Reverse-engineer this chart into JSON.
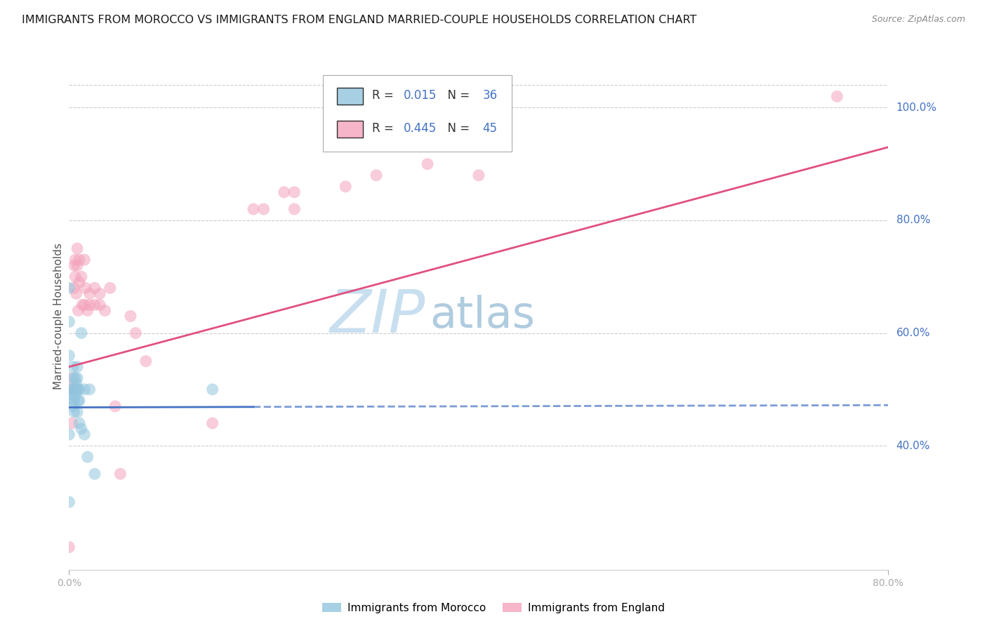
{
  "title": "IMMIGRANTS FROM MOROCCO VS IMMIGRANTS FROM ENGLAND MARRIED-COUPLE HOUSEHOLDS CORRELATION CHART",
  "source": "Source: ZipAtlas.com",
  "ylabel": "Married-couple Households",
  "xlim": [
    0.0,
    0.8
  ],
  "ylim": [
    0.18,
    1.08
  ],
  "ytick_values": [
    0.4,
    0.6,
    0.8,
    1.0
  ],
  "ytick_labels": [
    "40.0%",
    "60.0%",
    "80.0%",
    "100.0%"
  ],
  "xtick_values": [
    0.0,
    0.8
  ],
  "xtick_labels": [
    "0.0%",
    "80.0%"
  ],
  "legend_box": [
    {
      "label_prefix": "R = ",
      "R_val": "0.015",
      "mid": "   N = ",
      "N_val": "36",
      "color": "#92c5de"
    },
    {
      "label_prefix": "R = ",
      "R_val": "0.445",
      "mid": "   N = ",
      "N_val": "45",
      "color": "#f4a3bc"
    }
  ],
  "legend_bottom": [
    "Immigrants from Morocco",
    "Immigrants from England"
  ],
  "morocco_color": "#92c5de",
  "england_color": "#f4a3bc",
  "morocco_line_color": "#4472c4",
  "england_line_color": "#e05080",
  "dot_alpha": 0.55,
  "dot_size": 150,
  "bg_color": "#ffffff",
  "grid_color": "#cccccc",
  "tick_color": "#4472c4",
  "title_color": "#1a1a1a",
  "title_fontsize": 11.5,
  "source_fontsize": 9,
  "watermark_zip": "ZIP",
  "watermark_atlas": "atlas",
  "watermark_color_zip": "#c8dff0",
  "watermark_color_atlas": "#b0ccdf",
  "watermark_fontsize": 62,
  "morocco_x": [
    0.0,
    0.0,
    0.0,
    0.0,
    0.0,
    0.002,
    0.003,
    0.003,
    0.004,
    0.004,
    0.004,
    0.005,
    0.005,
    0.005,
    0.005,
    0.006,
    0.006,
    0.006,
    0.007,
    0.007,
    0.008,
    0.008,
    0.008,
    0.009,
    0.009,
    0.01,
    0.01,
    0.01,
    0.012,
    0.012,
    0.015,
    0.015,
    0.018,
    0.02,
    0.025,
    0.14
  ],
  "morocco_y": [
    0.68,
    0.62,
    0.56,
    0.42,
    0.3,
    0.5,
    0.49,
    0.48,
    0.54,
    0.52,
    0.47,
    0.5,
    0.5,
    0.48,
    0.46,
    0.52,
    0.5,
    0.49,
    0.51,
    0.5,
    0.54,
    0.52,
    0.46,
    0.5,
    0.48,
    0.44,
    0.5,
    0.48,
    0.6,
    0.43,
    0.5,
    0.42,
    0.38,
    0.5,
    0.35,
    0.5
  ],
  "england_x": [
    0.0,
    0.0,
    0.0,
    0.003,
    0.004,
    0.005,
    0.005,
    0.006,
    0.006,
    0.007,
    0.008,
    0.008,
    0.009,
    0.01,
    0.01,
    0.012,
    0.013,
    0.015,
    0.015,
    0.016,
    0.018,
    0.02,
    0.02,
    0.025,
    0.025,
    0.03,
    0.03,
    0.035,
    0.04,
    0.045,
    0.05,
    0.06,
    0.065,
    0.075,
    0.14,
    0.18,
    0.19,
    0.21,
    0.22,
    0.22,
    0.27,
    0.3,
    0.35,
    0.4,
    0.75
  ],
  "england_y": [
    0.52,
    0.5,
    0.22,
    0.44,
    0.5,
    0.72,
    0.68,
    0.73,
    0.7,
    0.67,
    0.75,
    0.72,
    0.64,
    0.73,
    0.69,
    0.7,
    0.65,
    0.73,
    0.65,
    0.68,
    0.64,
    0.67,
    0.65,
    0.68,
    0.65,
    0.65,
    0.67,
    0.64,
    0.68,
    0.47,
    0.35,
    0.63,
    0.6,
    0.55,
    0.44,
    0.82,
    0.82,
    0.85,
    0.85,
    0.82,
    0.86,
    0.88,
    0.9,
    0.88,
    1.02
  ],
  "morocco_line_x0": 0.0,
  "morocco_line_x_solid_end": 0.18,
  "morocco_line_y0": 0.468,
  "morocco_line_y1": 0.472,
  "england_line_x0": 0.0,
  "england_line_x1": 0.8,
  "england_line_y0": 0.54,
  "england_line_y1": 0.93
}
